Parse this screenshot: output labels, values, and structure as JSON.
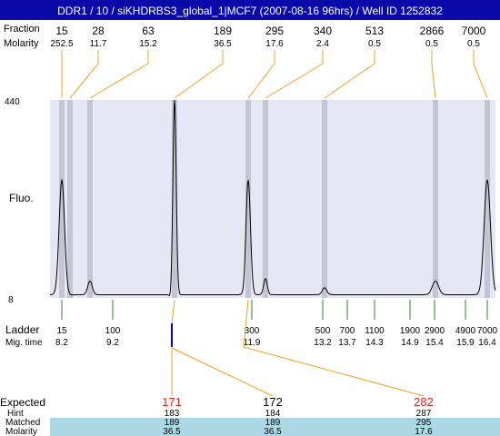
{
  "header": {
    "title": "DDR1 / 10 / siKHDRBS3_global_1|MCF7 (2007-08-16 96hrs) / Well ID 1252832"
  },
  "top_rows": {
    "fraction_label": "Fraction",
    "molarity_label": "Molarity",
    "peaks": [
      {
        "bp": "15",
        "molarity": "252.5"
      },
      {
        "bp": "28",
        "molarity": "11.7"
      },
      {
        "bp": "63",
        "molarity": "15.2"
      },
      {
        "bp": "189",
        "molarity": "36.5"
      },
      {
        "bp": "295",
        "molarity": "17.6"
      },
      {
        "bp": "340",
        "molarity": "2.4"
      },
      {
        "bp": "513",
        "molarity": "0.5"
      },
      {
        "bp": "2866",
        "molarity": "0.5"
      },
      {
        "bp": "7000",
        "molarity": "0.5"
      }
    ]
  },
  "axis": {
    "y_max_label": "440",
    "y_min_label": "8",
    "y_title": "Fluo."
  },
  "ladder": {
    "label": "Ladder",
    "mig_label": "Mig. time",
    "markers": [
      {
        "size": "15",
        "time": "8.2"
      },
      {
        "size": "100",
        "time": "9.2"
      },
      {
        "size": "300",
        "time": "11.9"
      },
      {
        "size": "500",
        "time": "13.2"
      },
      {
        "size": "700",
        "time": "13.7"
      },
      {
        "size": "1100",
        "time": "14.3"
      },
      {
        "size": "1900",
        "time": "14.9"
      },
      {
        "size": "2900",
        "time": "15.4"
      },
      {
        "size": "4900",
        "time": "15.9"
      },
      {
        "size": "7000",
        "time": "16.4"
      }
    ]
  },
  "expected": {
    "label": "Expected",
    "hint_label": "Hint",
    "matched_label": "Matched",
    "molarity_label": "Molarity",
    "columns": [
      {
        "expected": "171",
        "expected_color": "#dd2222",
        "hint": "183",
        "matched": "189",
        "molarity": "36.5"
      },
      {
        "expected": "172",
        "expected_color": "#000000",
        "hint": "184",
        "matched": "189",
        "molarity": "36.5"
      },
      {
        "expected": "282",
        "expected_color": "#dd2222",
        "hint": "287",
        "matched": "295",
        "molarity": "17.6"
      }
    ]
  },
  "colors": {
    "header_bg": "#0a0aa8",
    "plot_bg": "#e6e6f5",
    "band": "#c4c4d2",
    "connector": "#f0a020",
    "ladder_tick": "#2e7d32",
    "marker_blue": "#0000cc",
    "row_fill": "#add8e6"
  },
  "chart_data": {
    "type": "line",
    "title": "DDR1 / 10 / siKHDRBS3_global_1|MCF7 (2007-08-16 96hrs) / Well ID 1252832",
    "xlabel": "",
    "ylabel": "Fluo.",
    "ylim": [
      8,
      440
    ],
    "x_unit": "bp",
    "peaks": [
      {
        "bp": 15,
        "fluo": 265,
        "molarity": 252.5
      },
      {
        "bp": 28,
        "fluo": 14,
        "molarity": 11.7
      },
      {
        "bp": 63,
        "fluo": 45,
        "molarity": 15.2
      },
      {
        "bp": 189,
        "fluo": 440,
        "molarity": 36.5
      },
      {
        "bp": 295,
        "fluo": 265,
        "molarity": 17.6
      },
      {
        "bp": 340,
        "fluo": 50,
        "molarity": 2.4
      },
      {
        "bp": 513,
        "fluo": 30,
        "molarity": 0.5
      },
      {
        "bp": 2866,
        "fluo": 45,
        "molarity": 0.5
      },
      {
        "bp": 7000,
        "fluo": 265,
        "molarity": 0.5
      }
    ],
    "baseline": 15,
    "ladder_sizes": [
      15,
      100,
      300,
      500,
      700,
      1100,
      1900,
      2900,
      4900,
      7000
    ],
    "ladder_mig_times": [
      8.2,
      9.2,
      11.9,
      13.2,
      13.7,
      14.3,
      14.9,
      15.4,
      15.9,
      16.4
    ],
    "grid": false,
    "legend": "none"
  }
}
